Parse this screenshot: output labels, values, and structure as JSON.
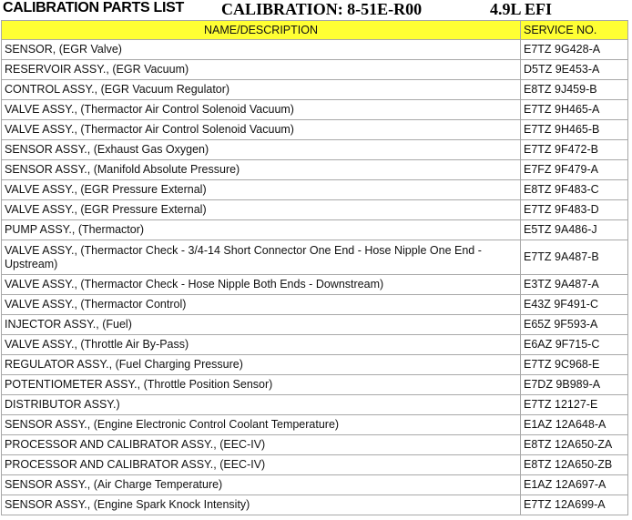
{
  "title": {
    "left": "CALIBRATION PARTS LIST",
    "calibration": "CALIBRATION: 8-51E-R00",
    "engine": "4.9L EFI"
  },
  "header": {
    "name": "NAME/DESCRIPTION",
    "service": "SERVICE NO."
  },
  "header_color": "#ffff33",
  "rows": [
    {
      "name": "SENSOR, (EGR Valve)",
      "service": "E7TZ 9G428-A"
    },
    {
      "name": "RESERVOIR ASSY., (EGR Vacuum)",
      "service": "D5TZ 9E453-A"
    },
    {
      "name": "CONTROL ASSY., (EGR Vacuum Regulator)",
      "service": "E8TZ 9J459-B"
    },
    {
      "name": "VALVE ASSY., (Thermactor Air Control Solenoid Vacuum)",
      "service": "E7TZ 9H465-A"
    },
    {
      "name": "VALVE ASSY., (Thermactor Air Control Solenoid Vacuum)",
      "service": "E7TZ 9H465-B"
    },
    {
      "name": "SENSOR ASSY., (Exhaust Gas Oxygen)",
      "service": "E7TZ 9F472-B"
    },
    {
      "name": "SENSOR ASSY., (Manifold Absolute Pressure)",
      "service": "E7FZ 9F479-A"
    },
    {
      "name": "VALVE ASSY., (EGR Pressure External)",
      "service": "E8TZ 9F483-C"
    },
    {
      "name": "VALVE ASSY., (EGR Pressure External)",
      "service": "E7TZ 9F483-D"
    },
    {
      "name": "PUMP ASSY., (Thermactor)",
      "service": "E5TZ 9A486-J"
    },
    {
      "name": "VALVE ASSY., (Thermactor Check - 3/4-14 Short Connector One End - Hose Nipple One End - Upstream)",
      "service": "E7TZ 9A487-B"
    },
    {
      "name": "VALVE ASSY., (Thermactor Check - Hose Nipple Both Ends - Downstream)",
      "service": "E3TZ 9A487-A"
    },
    {
      "name": "VALVE ASSY., (Thermactor Control)",
      "service": "E43Z 9F491-C"
    },
    {
      "name": "INJECTOR ASSY., (Fuel)",
      "service": "E65Z 9F593-A"
    },
    {
      "name": "VALVE ASSY., (Throttle Air By-Pass)",
      "service": "E6AZ 9F715-C"
    },
    {
      "name": "REGULATOR ASSY., (Fuel Charging Pressure)",
      "service": "E7TZ 9C968-E"
    },
    {
      "name": "POTENTIOMETER ASSY., (Throttle Position Sensor)",
      "service": "E7DZ 9B989-A"
    },
    {
      "name": "DISTRIBUTOR ASSY.)",
      "service": "E7TZ 12127-E"
    },
    {
      "name": "SENSOR ASSY., (Engine Electronic Control Coolant Temperature)",
      "service": "E1AZ 12A648-A"
    },
    {
      "name": "PROCESSOR AND CALIBRATOR ASSY., (EEC-IV)",
      "service": "E8TZ 12A650-ZA"
    },
    {
      "name": "PROCESSOR AND CALIBRATOR ASSY., (EEC-IV)",
      "service": "E8TZ 12A650-ZB"
    },
    {
      "name": "SENSOR ASSY., (Air Charge Temperature)",
      "service": "E1AZ 12A697-A"
    },
    {
      "name": "SENSOR ASSY., (Engine Spark Knock Intensity)",
      "service": "E7TZ 12A699-A"
    }
  ]
}
